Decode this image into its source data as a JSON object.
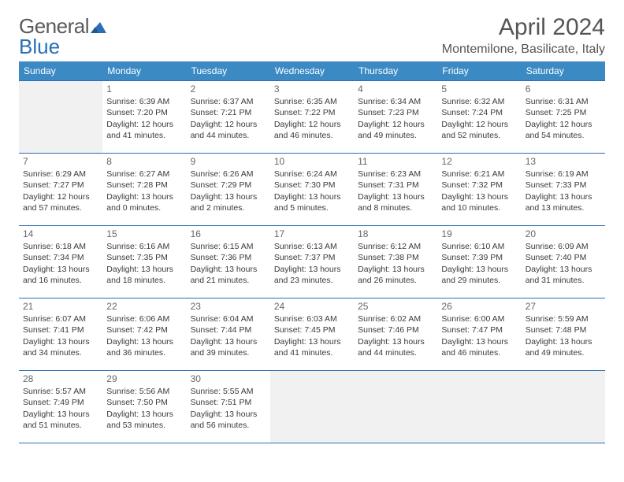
{
  "logo": {
    "text_gray": "General",
    "text_blue": "Blue",
    "shape_color": "#2a6fb5"
  },
  "header": {
    "month_title": "April 2024",
    "location": "Montemilone, Basilicate, Italy"
  },
  "days_of_week": [
    "Sunday",
    "Monday",
    "Tuesday",
    "Wednesday",
    "Thursday",
    "Friday",
    "Saturday"
  ],
  "colors": {
    "header_bg": "#3b8ac4",
    "header_text": "#ffffff",
    "border": "#2a6fb5",
    "empty_bg": "#f1f1f1",
    "text": "#3a3a3a"
  },
  "weeks": [
    [
      {
        "empty": true
      },
      {
        "day": "1",
        "sunrise": "Sunrise: 6:39 AM",
        "sunset": "Sunset: 7:20 PM",
        "daylight1": "Daylight: 12 hours",
        "daylight2": "and 41 minutes."
      },
      {
        "day": "2",
        "sunrise": "Sunrise: 6:37 AM",
        "sunset": "Sunset: 7:21 PM",
        "daylight1": "Daylight: 12 hours",
        "daylight2": "and 44 minutes."
      },
      {
        "day": "3",
        "sunrise": "Sunrise: 6:35 AM",
        "sunset": "Sunset: 7:22 PM",
        "daylight1": "Daylight: 12 hours",
        "daylight2": "and 46 minutes."
      },
      {
        "day": "4",
        "sunrise": "Sunrise: 6:34 AM",
        "sunset": "Sunset: 7:23 PM",
        "daylight1": "Daylight: 12 hours",
        "daylight2": "and 49 minutes."
      },
      {
        "day": "5",
        "sunrise": "Sunrise: 6:32 AM",
        "sunset": "Sunset: 7:24 PM",
        "daylight1": "Daylight: 12 hours",
        "daylight2": "and 52 minutes."
      },
      {
        "day": "6",
        "sunrise": "Sunrise: 6:31 AM",
        "sunset": "Sunset: 7:25 PM",
        "daylight1": "Daylight: 12 hours",
        "daylight2": "and 54 minutes."
      }
    ],
    [
      {
        "day": "7",
        "sunrise": "Sunrise: 6:29 AM",
        "sunset": "Sunset: 7:27 PM",
        "daylight1": "Daylight: 12 hours",
        "daylight2": "and 57 minutes."
      },
      {
        "day": "8",
        "sunrise": "Sunrise: 6:27 AM",
        "sunset": "Sunset: 7:28 PM",
        "daylight1": "Daylight: 13 hours",
        "daylight2": "and 0 minutes."
      },
      {
        "day": "9",
        "sunrise": "Sunrise: 6:26 AM",
        "sunset": "Sunset: 7:29 PM",
        "daylight1": "Daylight: 13 hours",
        "daylight2": "and 2 minutes."
      },
      {
        "day": "10",
        "sunrise": "Sunrise: 6:24 AM",
        "sunset": "Sunset: 7:30 PM",
        "daylight1": "Daylight: 13 hours",
        "daylight2": "and 5 minutes."
      },
      {
        "day": "11",
        "sunrise": "Sunrise: 6:23 AM",
        "sunset": "Sunset: 7:31 PM",
        "daylight1": "Daylight: 13 hours",
        "daylight2": "and 8 minutes."
      },
      {
        "day": "12",
        "sunrise": "Sunrise: 6:21 AM",
        "sunset": "Sunset: 7:32 PM",
        "daylight1": "Daylight: 13 hours",
        "daylight2": "and 10 minutes."
      },
      {
        "day": "13",
        "sunrise": "Sunrise: 6:19 AM",
        "sunset": "Sunset: 7:33 PM",
        "daylight1": "Daylight: 13 hours",
        "daylight2": "and 13 minutes."
      }
    ],
    [
      {
        "day": "14",
        "sunrise": "Sunrise: 6:18 AM",
        "sunset": "Sunset: 7:34 PM",
        "daylight1": "Daylight: 13 hours",
        "daylight2": "and 16 minutes."
      },
      {
        "day": "15",
        "sunrise": "Sunrise: 6:16 AM",
        "sunset": "Sunset: 7:35 PM",
        "daylight1": "Daylight: 13 hours",
        "daylight2": "and 18 minutes."
      },
      {
        "day": "16",
        "sunrise": "Sunrise: 6:15 AM",
        "sunset": "Sunset: 7:36 PM",
        "daylight1": "Daylight: 13 hours",
        "daylight2": "and 21 minutes."
      },
      {
        "day": "17",
        "sunrise": "Sunrise: 6:13 AM",
        "sunset": "Sunset: 7:37 PM",
        "daylight1": "Daylight: 13 hours",
        "daylight2": "and 23 minutes."
      },
      {
        "day": "18",
        "sunrise": "Sunrise: 6:12 AM",
        "sunset": "Sunset: 7:38 PM",
        "daylight1": "Daylight: 13 hours",
        "daylight2": "and 26 minutes."
      },
      {
        "day": "19",
        "sunrise": "Sunrise: 6:10 AM",
        "sunset": "Sunset: 7:39 PM",
        "daylight1": "Daylight: 13 hours",
        "daylight2": "and 29 minutes."
      },
      {
        "day": "20",
        "sunrise": "Sunrise: 6:09 AM",
        "sunset": "Sunset: 7:40 PM",
        "daylight1": "Daylight: 13 hours",
        "daylight2": "and 31 minutes."
      }
    ],
    [
      {
        "day": "21",
        "sunrise": "Sunrise: 6:07 AM",
        "sunset": "Sunset: 7:41 PM",
        "daylight1": "Daylight: 13 hours",
        "daylight2": "and 34 minutes."
      },
      {
        "day": "22",
        "sunrise": "Sunrise: 6:06 AM",
        "sunset": "Sunset: 7:42 PM",
        "daylight1": "Daylight: 13 hours",
        "daylight2": "and 36 minutes."
      },
      {
        "day": "23",
        "sunrise": "Sunrise: 6:04 AM",
        "sunset": "Sunset: 7:44 PM",
        "daylight1": "Daylight: 13 hours",
        "daylight2": "and 39 minutes."
      },
      {
        "day": "24",
        "sunrise": "Sunrise: 6:03 AM",
        "sunset": "Sunset: 7:45 PM",
        "daylight1": "Daylight: 13 hours",
        "daylight2": "and 41 minutes."
      },
      {
        "day": "25",
        "sunrise": "Sunrise: 6:02 AM",
        "sunset": "Sunset: 7:46 PM",
        "daylight1": "Daylight: 13 hours",
        "daylight2": "and 44 minutes."
      },
      {
        "day": "26",
        "sunrise": "Sunrise: 6:00 AM",
        "sunset": "Sunset: 7:47 PM",
        "daylight1": "Daylight: 13 hours",
        "daylight2": "and 46 minutes."
      },
      {
        "day": "27",
        "sunrise": "Sunrise: 5:59 AM",
        "sunset": "Sunset: 7:48 PM",
        "daylight1": "Daylight: 13 hours",
        "daylight2": "and 49 minutes."
      }
    ],
    [
      {
        "day": "28",
        "sunrise": "Sunrise: 5:57 AM",
        "sunset": "Sunset: 7:49 PM",
        "daylight1": "Daylight: 13 hours",
        "daylight2": "and 51 minutes."
      },
      {
        "day": "29",
        "sunrise": "Sunrise: 5:56 AM",
        "sunset": "Sunset: 7:50 PM",
        "daylight1": "Daylight: 13 hours",
        "daylight2": "and 53 minutes."
      },
      {
        "day": "30",
        "sunrise": "Sunrise: 5:55 AM",
        "sunset": "Sunset: 7:51 PM",
        "daylight1": "Daylight: 13 hours",
        "daylight2": "and 56 minutes."
      },
      {
        "empty": true
      },
      {
        "empty": true
      },
      {
        "empty": true
      },
      {
        "empty": true
      }
    ]
  ]
}
